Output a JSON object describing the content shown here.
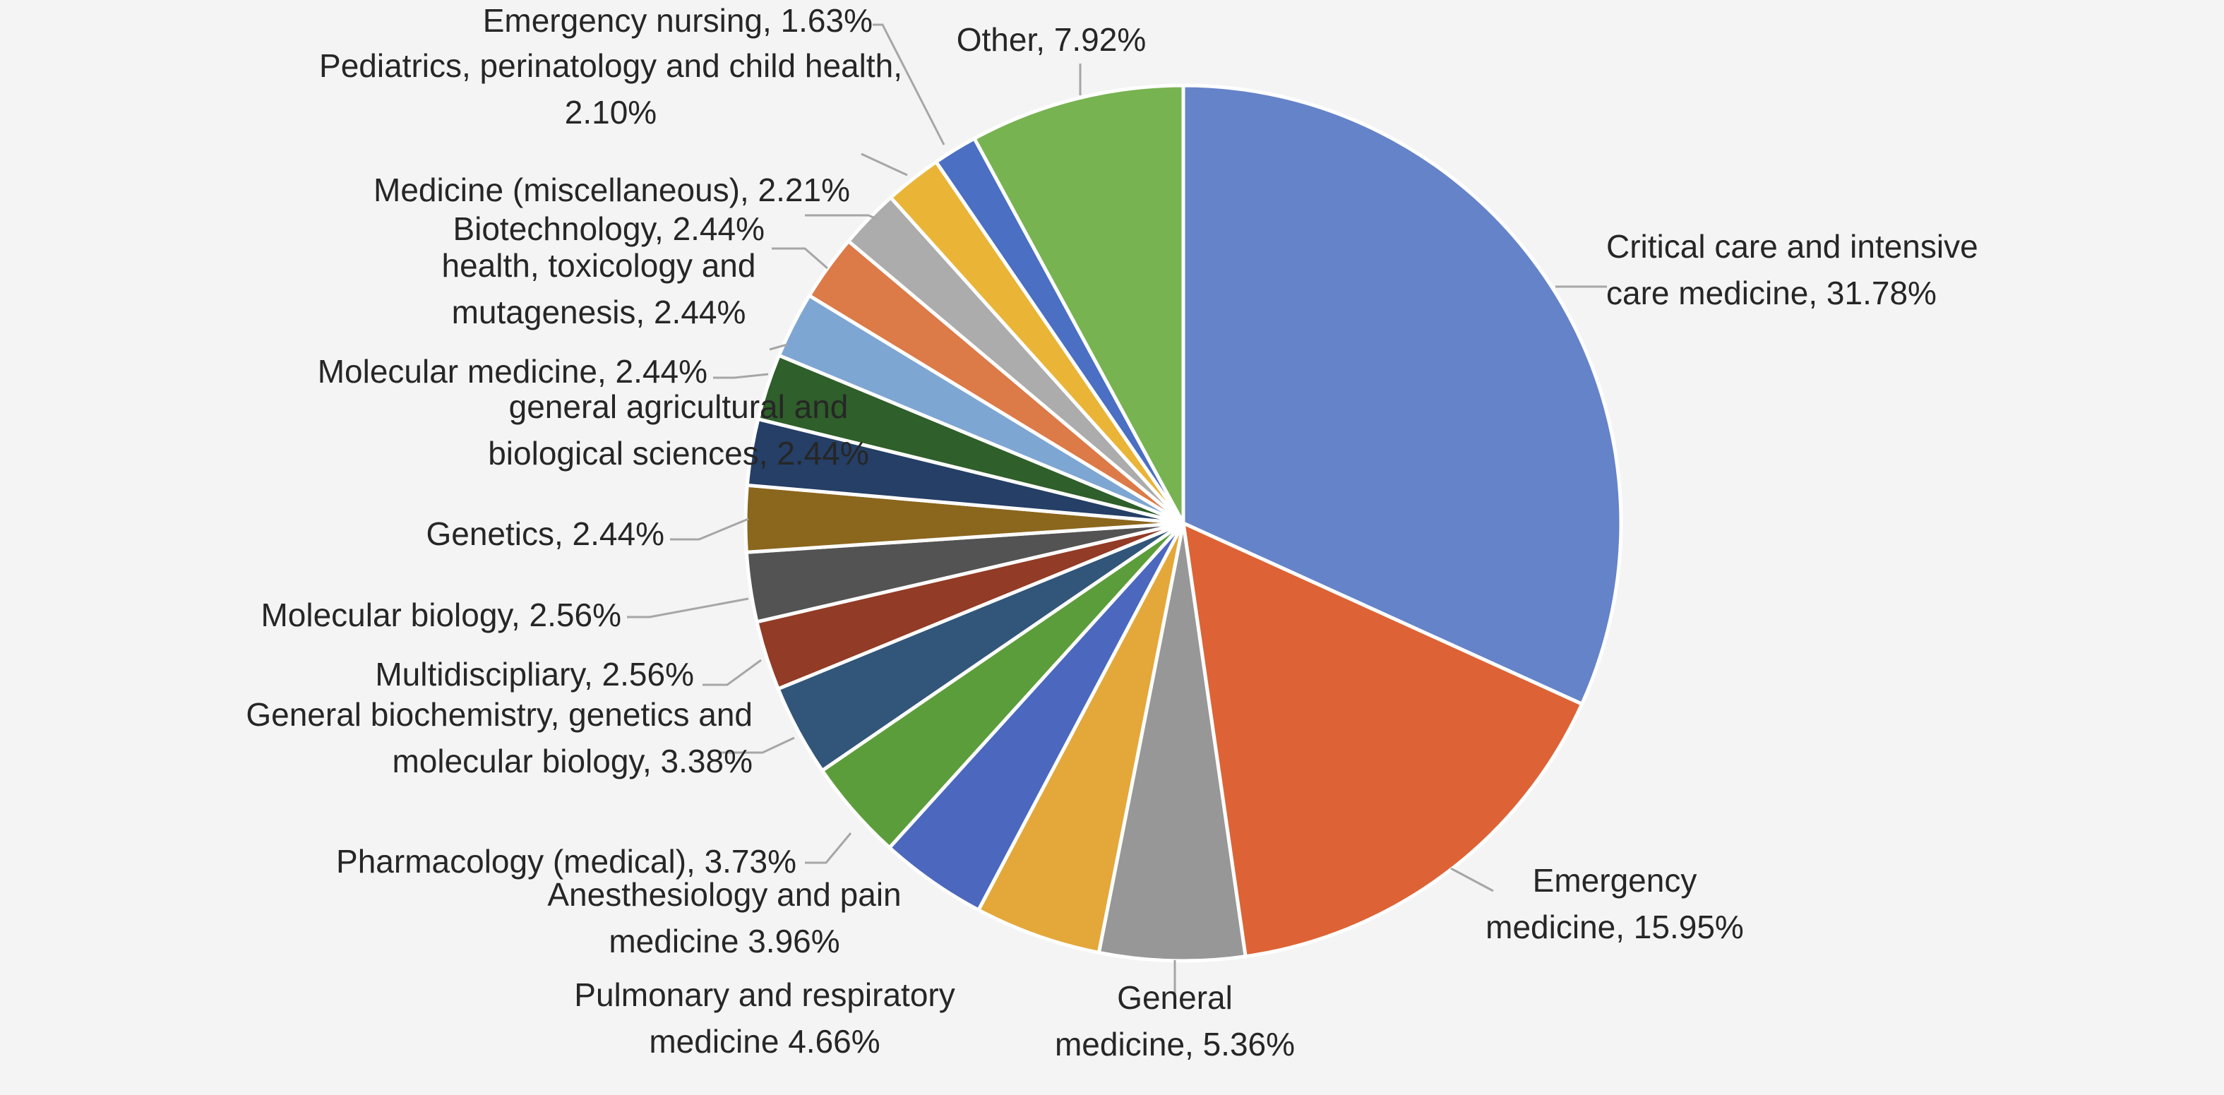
{
  "chart_data": {
    "type": "pie",
    "title": "",
    "start_angle_deg": 0,
    "direction": "clockwise",
    "slices": [
      {
        "label_lines": [
          "Critical care and intensive",
          "care medicine, 31.78%"
        ],
        "value": 31.78,
        "color": "#6583c8"
      },
      {
        "label_lines": [
          "Emergency",
          "medicine, 15.95%"
        ],
        "value": 15.95,
        "color": "#dd6336"
      },
      {
        "label_lines": [
          "General",
          "medicine, 5.36%"
        ],
        "value": 5.36,
        "color": "#979797"
      },
      {
        "label_lines": [
          "Pulmonary and respiratory",
          "medicine 4.66%"
        ],
        "value": 4.66,
        "color": "#e4a73a"
      },
      {
        "label_lines": [
          "Anesthesiology and pain",
          "medicine 3.96%"
        ],
        "value": 3.96,
        "color": "#4b68be"
      },
      {
        "label_lines": [
          "Pharmacology (medical), 3.73%"
        ],
        "value": 3.73,
        "color": "#5c9d3b"
      },
      {
        "label_lines": [
          "General biochemistry, genetics and",
          "molecular biology, 3.38%"
        ],
        "value": 3.38,
        "color": "#325679"
      },
      {
        "label_lines": [
          "Multidiscipliary, 2.56%"
        ],
        "value": 2.56,
        "color": "#923b26"
      },
      {
        "label_lines": [
          "Molecular biology, 2.56%"
        ],
        "value": 2.56,
        "color": "#535353"
      },
      {
        "label_lines": [
          "Genetics, 2.44%"
        ],
        "value": 2.44,
        "color": "#8b661d"
      },
      {
        "label_lines": [
          "general agricultural and",
          "biological sciences, 2.44%"
        ],
        "value": 2.44,
        "color": "#253f66"
      },
      {
        "label_lines": [
          "Molecular medicine, 2.44%"
        ],
        "value": 2.44,
        "color": "#2f5f2a"
      },
      {
        "label_lines": [
          "health, toxicology and",
          "mutagenesis, 2.44%"
        ],
        "value": 2.44,
        "color": "#7ea6d3"
      },
      {
        "label_lines": [
          "Biotechnology, 2.44%"
        ],
        "value": 2.44,
        "color": "#dc7a48"
      },
      {
        "label_lines": [
          "Medicine (miscellaneous), 2.21%"
        ],
        "value": 2.21,
        "color": "#acacac"
      },
      {
        "label_lines": [
          "Pediatrics, perinatology and child health,",
          "2.10%"
        ],
        "value": 2.1,
        "color": "#eab437"
      },
      {
        "label_lines": [
          "Emergency nursing, 1.63%"
        ],
        "value": 1.63,
        "color": "#4a6fc3"
      },
      {
        "label_lines": [
          "Other, 7.92%"
        ],
        "value": 7.92,
        "color": "#77b351"
      }
    ]
  }
}
